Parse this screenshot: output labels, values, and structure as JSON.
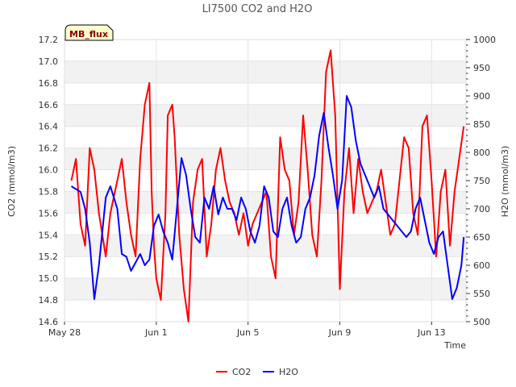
{
  "chart_data": {
    "type": "line",
    "title": "LI7500 CO2 and H2O",
    "xlabel": "Time",
    "ylabel": "CO2 (mmol/m3)",
    "y2label": "H2O (mmol/m3)",
    "site_badge": "MB_flux",
    "x_tick_labels": [
      "May 28",
      "Jun 1",
      "Jun 5",
      "Jun 9",
      "Jun 13"
    ],
    "x_tick_days": [
      0,
      4,
      8,
      12,
      16
    ],
    "xlim_days": [
      0,
      17.5
    ],
    "ylim": [
      14.6,
      17.2
    ],
    "y_ticks": [
      14.6,
      14.8,
      15.0,
      15.2,
      15.4,
      15.6,
      15.8,
      16.0,
      16.2,
      16.4,
      16.6,
      16.8,
      17.0,
      17.2
    ],
    "y2lim": [
      500,
      1000
    ],
    "y2_ticks": [
      500,
      550,
      600,
      650,
      700,
      750,
      800,
      850,
      900,
      950,
      1000
    ],
    "grid": true,
    "legend_position": "bottom-center",
    "series": [
      {
        "name": "CO2",
        "axis": "left",
        "color": "#ff0000",
        "x": [
          0.3,
          0.5,
          0.7,
          0.9,
          1.1,
          1.3,
          1.5,
          1.8,
          2.0,
          2.3,
          2.5,
          2.7,
          2.9,
          3.1,
          3.3,
          3.5,
          3.7,
          3.8,
          3.9,
          4.0,
          4.2,
          4.4,
          4.5,
          4.7,
          4.8,
          5.0,
          5.2,
          5.4,
          5.6,
          5.8,
          6.0,
          6.2,
          6.4,
          6.6,
          6.8,
          7.0,
          7.2,
          7.4,
          7.6,
          7.8,
          8.0,
          8.2,
          8.4,
          8.6,
          8.8,
          9.0,
          9.2,
          9.4,
          9.6,
          9.8,
          10.0,
          10.2,
          10.4,
          10.6,
          10.8,
          11.0,
          11.2,
          11.4,
          11.6,
          11.8,
          12.0,
          12.2,
          12.4,
          12.6,
          12.8,
          13.0,
          13.2,
          13.4,
          13.6,
          13.8,
          14.0,
          14.2,
          14.4,
          14.6,
          14.8,
          15.0,
          15.2,
          15.4,
          15.6,
          15.8,
          16.0,
          16.2,
          16.4,
          16.6,
          16.8,
          17.0,
          17.2,
          17.4
        ],
        "values": [
          15.9,
          16.1,
          15.5,
          15.3,
          16.2,
          16.0,
          15.6,
          15.2,
          15.6,
          15.9,
          16.1,
          15.7,
          15.4,
          15.2,
          16.1,
          16.6,
          16.8,
          15.8,
          15.3,
          15.0,
          14.8,
          15.6,
          16.5,
          16.6,
          16.3,
          15.4,
          14.9,
          14.6,
          15.7,
          16.0,
          16.1,
          15.2,
          15.5,
          16.0,
          16.2,
          15.9,
          15.7,
          15.6,
          15.4,
          15.6,
          15.3,
          15.5,
          15.6,
          15.7,
          15.8,
          15.2,
          15.0,
          16.3,
          16.0,
          15.9,
          15.4,
          15.7,
          16.5,
          16.0,
          15.4,
          15.2,
          15.9,
          16.9,
          17.1,
          16.5,
          14.9,
          15.8,
          16.2,
          15.6,
          16.1,
          15.8,
          15.6,
          15.7,
          15.8,
          16.0,
          15.7,
          15.4,
          15.5,
          15.9,
          16.3,
          16.2,
          15.6,
          15.4,
          16.4,
          16.5,
          15.9,
          15.2,
          15.8,
          16.0,
          15.3,
          15.8,
          16.1,
          16.4
        ],
        "note": "values approximate"
      },
      {
        "name": "H2O",
        "axis": "right",
        "color": "#0000ff",
        "x": [
          0.3,
          0.5,
          0.7,
          0.9,
          1.1,
          1.3,
          1.5,
          1.8,
          2.0,
          2.3,
          2.5,
          2.7,
          2.9,
          3.1,
          3.3,
          3.5,
          3.7,
          3.9,
          4.1,
          4.3,
          4.5,
          4.7,
          4.9,
          5.1,
          5.3,
          5.5,
          5.7,
          5.9,
          6.1,
          6.3,
          6.5,
          6.7,
          6.9,
          7.1,
          7.3,
          7.5,
          7.7,
          7.9,
          8.1,
          8.3,
          8.5,
          8.7,
          8.9,
          9.1,
          9.3,
          9.5,
          9.7,
          9.9,
          10.1,
          10.3,
          10.5,
          10.7,
          10.9,
          11.1,
          11.3,
          11.5,
          11.7,
          11.9,
          12.1,
          12.3,
          12.5,
          12.7,
          12.9,
          13.1,
          13.3,
          13.5,
          13.7,
          13.9,
          14.1,
          14.3,
          14.5,
          14.7,
          14.9,
          15.1,
          15.3,
          15.5,
          15.7,
          15.9,
          16.1,
          16.3,
          16.5,
          16.7,
          16.9,
          17.1,
          17.3,
          17.4
        ],
        "values": [
          740,
          735,
          730,
          700,
          640,
          540,
          600,
          720,
          740,
          700,
          620,
          615,
          590,
          605,
          620,
          600,
          610,
          670,
          690,
          660,
          640,
          610,
          700,
          790,
          760,
          700,
          650,
          640,
          720,
          700,
          740,
          690,
          720,
          700,
          700,
          680,
          720,
          700,
          660,
          640,
          670,
          740,
          720,
          660,
          650,
          700,
          720,
          670,
          640,
          650,
          700,
          720,
          760,
          830,
          870,
          810,
          760,
          700,
          750,
          900,
          880,
          820,
          780,
          760,
          740,
          720,
          740,
          700,
          690,
          680,
          670,
          660,
          650,
          660,
          700,
          720,
          680,
          640,
          620,
          650,
          660,
          600,
          540,
          560,
          600,
          650
        ],
        "note": "values approximate"
      }
    ]
  }
}
